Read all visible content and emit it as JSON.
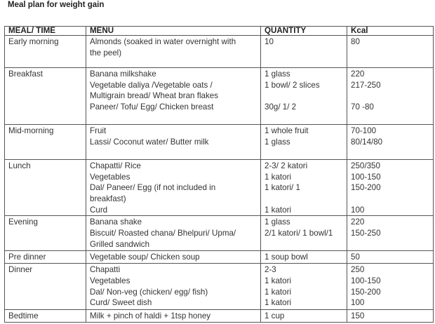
{
  "title": "Meal plan for weight gain",
  "headers": [
    "MEAL/ TIME",
    "MENU",
    "QUANTITY",
    "Kcal"
  ],
  "rows": [
    {
      "meal": "Early morning",
      "menu": [
        "Almonds (soaked in water overnight with",
        "the peel)"
      ],
      "quantity": [
        "10"
      ],
      "kcal": [
        "80"
      ]
    },
    {
      "meal": "Breakfast",
      "menu": [
        "Banana milkshake",
        "Vegetable daliya /Vegetable oats /",
        "Multigrain bread/  Wheat bran flakes",
        "Paneer/ Tofu/ Egg/ Chicken breast"
      ],
      "quantity": [
        "1 glass",
        "1 bowl/ 2 slices",
        "",
        "30g/ 1/ 2"
      ],
      "kcal": [
        "220",
        "217-250",
        "",
        "70 -80"
      ]
    },
    {
      "meal": "Mid-morning",
      "menu": [
        "Fruit",
        "Lassi/ Coconut water/ Butter milk"
      ],
      "quantity": [
        "1 whole fruit",
        "1 glass"
      ],
      "kcal": [
        "70-100",
        "80/14/80"
      ]
    },
    {
      "meal": "Lunch",
      "menu": [
        "Chapatti/ Rice",
        "Vegetables",
        "Dal/ Paneer/ Egg (if not included in",
        "breakfast)",
        "Curd"
      ],
      "quantity": [
        "2-3/ 2 katori",
        "1 katori",
        "1 katori/ 1",
        "",
        "1 katori"
      ],
      "kcal": [
        "250/350",
        "100-150",
        "150-200",
        "",
        "100"
      ]
    },
    {
      "meal": "Evening",
      "menu": [
        "Banana shake",
        "Biscuit/ Roasted chana/ Bhelpuri/ Upma/",
        "Grilled sandwich"
      ],
      "quantity": [
        "1 glass",
        "2/1 katori/ 1 bowl/1"
      ],
      "kcal": [
        "220",
        "150-250"
      ]
    },
    {
      "meal": "Pre dinner",
      "menu": [
        "Vegetable soup/ Chicken soup"
      ],
      "quantity": [
        "1 soup bowl"
      ],
      "kcal": [
        "50"
      ]
    },
    {
      "meal": "Dinner",
      "menu": [
        "Chapatti",
        "Vegetables",
        "Dal/ Non-veg (chicken/ egg/ fish)",
        "Curd/ Sweet dish"
      ],
      "quantity": [
        "2-3",
        "1 katori",
        "1 katori",
        "1 katori"
      ],
      "kcal": [
        "250",
        "100-150",
        "150-200",
        "100"
      ]
    },
    {
      "meal": "Bedtime",
      "menu": [
        "Milk + pinch of haldi + 1tsp honey"
      ],
      "quantity": [
        " 1 cup"
      ],
      "kcal": [
        "150"
      ]
    }
  ]
}
